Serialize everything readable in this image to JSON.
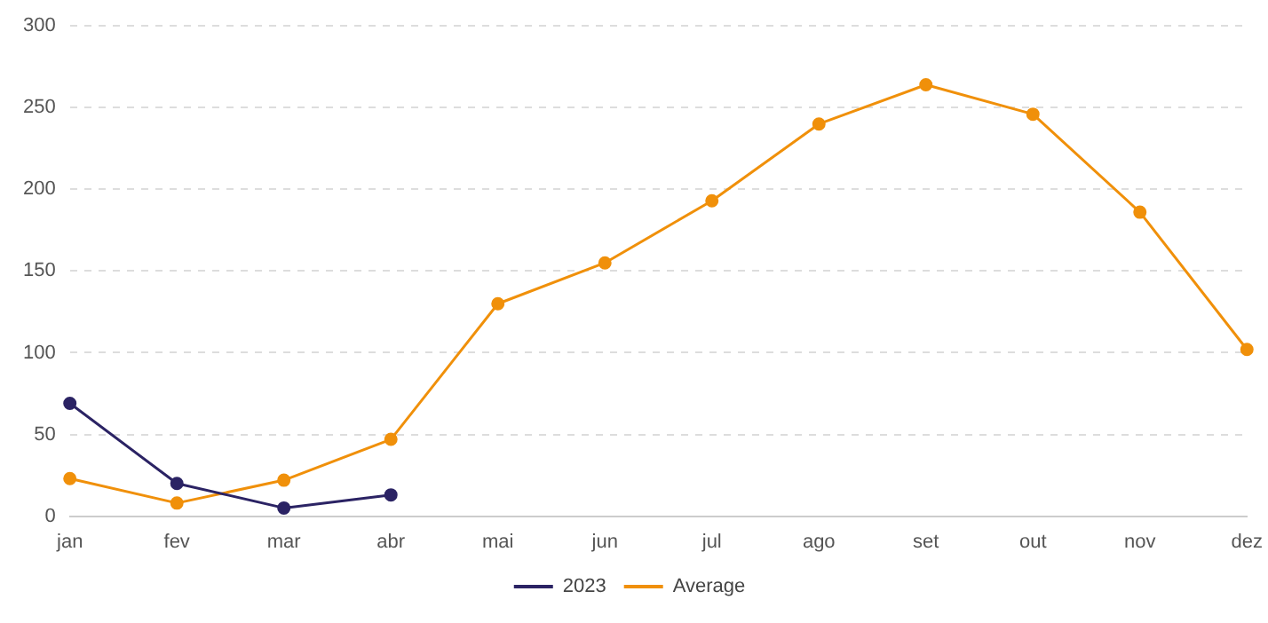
{
  "chart_data": {
    "type": "line",
    "categories": [
      "jan",
      "fev",
      "mar",
      "abr",
      "mai",
      "jun",
      "jul",
      "ago",
      "set",
      "out",
      "nov",
      "dez"
    ],
    "series": [
      {
        "name": "2023",
        "color": "#2b2364",
        "values": [
          69,
          20,
          5,
          13,
          null,
          null,
          null,
          null,
          null,
          null,
          null,
          null
        ]
      },
      {
        "name": "Average",
        "color": "#f0900a",
        "values": [
          23,
          8,
          22,
          47,
          130,
          155,
          193,
          240,
          264,
          246,
          186,
          102
        ]
      }
    ],
    "ylim": [
      0,
      300
    ],
    "yticks": [
      0,
      50,
      100,
      150,
      200,
      250,
      300
    ],
    "grid": "y",
    "legend": "bottom",
    "marker": "circle",
    "line_style": "solid"
  }
}
